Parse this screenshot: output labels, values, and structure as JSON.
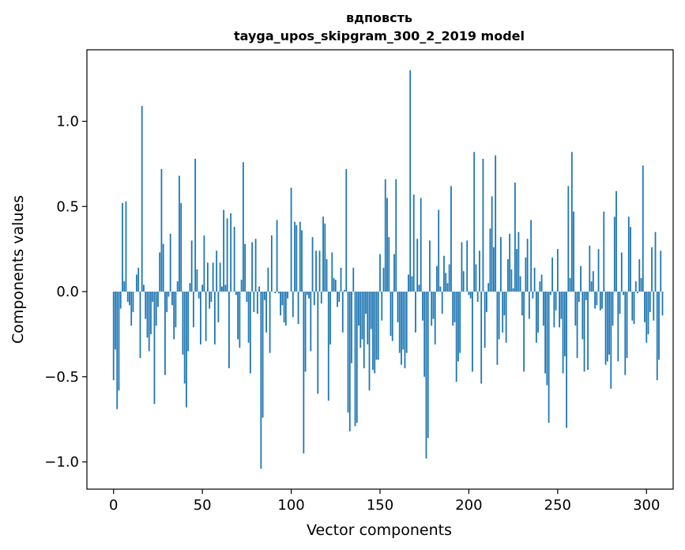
{
  "chart_data": {
    "type": "bar",
    "title": "вдповсть",
    "subtitle": "tayga_upos_skipgram_300_2_2019 model",
    "xlabel": "Vector components",
    "ylabel": "Components values",
    "xlim": [
      -15,
      315
    ],
    "ylim": [
      -1.16,
      1.42
    ],
    "xticks": [
      0,
      50,
      100,
      150,
      200,
      250,
      300
    ],
    "yticks": [
      -1.0,
      -0.5,
      0.0,
      0.5,
      1.0
    ],
    "ytick_labels": [
      "−1.0",
      "−0.5",
      "0.0",
      "0.5",
      "1.0"
    ],
    "bar_width": 0.8,
    "grid": false,
    "legend": "none",
    "color": "#1f77b4",
    "values": [
      -0.52,
      -0.34,
      -0.69,
      -0.58,
      -0.1,
      0.52,
      0.06,
      0.53,
      -0.06,
      -0.08,
      -0.2,
      -0.12,
      0.0,
      0.1,
      0.14,
      -0.39,
      1.09,
      0.04,
      -0.16,
      -0.27,
      -0.35,
      -0.25,
      -0.06,
      -0.66,
      -0.2,
      -0.09,
      0.23,
      0.72,
      0.28,
      -0.49,
      -0.12,
      -0.03,
      0.34,
      -0.08,
      -0.28,
      -0.21,
      0.06,
      0.68,
      0.52,
      -0.37,
      -0.54,
      -0.68,
      -0.35,
      0.05,
      0.3,
      -0.21,
      0.78,
      0.13,
      -0.04,
      -0.31,
      0.04,
      0.33,
      -0.29,
      0.17,
      -0.1,
      -0.06,
      0.17,
      -0.31,
      0.24,
      -0.18,
      0.17,
      0.03,
      0.48,
      0.04,
      0.43,
      -0.45,
      0.46,
      0.0,
      0.38,
      -0.02,
      -0.28,
      -0.33,
      0.07,
      0.76,
      0.28,
      -0.06,
      -0.3,
      -0.48,
      0.29,
      -0.12,
      0.31,
      -0.13,
      0.03,
      -1.04,
      -0.74,
      -0.05,
      -0.24,
      0.14,
      -0.36,
      0.33,
      0.0,
      -0.01,
      0.42,
      -0.01,
      -0.14,
      -0.08,
      -0.18,
      -0.2,
      -0.04,
      0.0,
      0.61,
      -0.15,
      0.41,
      0.39,
      -0.19,
      0.41,
      0.36,
      -0.95,
      -0.47,
      -0.02,
      -0.04,
      -0.35,
      0.32,
      -0.08,
      0.24,
      -0.6,
      0.24,
      -0.07,
      0.44,
      0.4,
      0.19,
      -0.64,
      -0.31,
      0.23,
      0.08,
      0.07,
      -0.09,
      -0.06,
      0.14,
      -0.24,
      0.01,
      0.72,
      -0.71,
      -0.82,
      -0.42,
      0.14,
      -0.79,
      -0.77,
      -0.2,
      -0.33,
      -0.28,
      -0.45,
      -0.13,
      -0.31,
      -0.58,
      -0.22,
      -0.46,
      -0.48,
      -0.4,
      -0.4,
      0.22,
      -0.17,
      0.14,
      0.66,
      0.55,
      0.32,
      -0.26,
      -0.29,
      0.22,
      0.66,
      -0.18,
      -0.36,
      -0.43,
      -0.34,
      -0.45,
      -0.36,
      0.1,
      1.3,
      0.09,
      0.57,
      -0.24,
      0.31,
      0.04,
      0.55,
      -0.17,
      -0.5,
      -0.98,
      -0.86,
      0.3,
      -0.2,
      -0.16,
      -0.31,
      0.15,
      0.48,
      0.03,
      -0.13,
      0.21,
      0.11,
      0.05,
      0.16,
      0.62,
      -0.2,
      -0.18,
      -0.53,
      -0.41,
      -0.36,
      0.29,
      0.12,
      0.0,
      0.3,
      -0.02,
      -0.04,
      -0.47,
      0.82,
      0.16,
      -0.06,
      0.24,
      -0.54,
      0.78,
      -0.33,
      -0.12,
      0.05,
      0.37,
      0.56,
      0.26,
      0.8,
      -0.43,
      -0.28,
      0.32,
      -0.24,
      -0.14,
      -0.3,
      0.19,
      0.34,
      0.13,
      0.02,
      0.64,
      0.25,
      0.35,
      0.09,
      -0.14,
      -0.47,
      0.2,
      0.31,
      -0.16,
      0.42,
      -0.04,
      0.14,
      -0.3,
      -0.24,
      0.06,
      0.1,
      -0.2,
      -0.48,
      -0.55,
      -0.77,
      -0.02,
      0.2,
      -0.21,
      -0.11,
      0.25,
      -0.21,
      -0.16,
      -0.48,
      -0.38,
      -0.8,
      0.62,
      0.08,
      0.82,
      0.47,
      -0.2,
      -0.39,
      -0.06,
      0.15,
      -0.28,
      -0.47,
      -0.05,
      -0.46,
      0.27,
      0.06,
      0.12,
      -0.1,
      -0.08,
      0.25,
      -0.11,
      -0.1,
      0.47,
      -0.43,
      -0.41,
      -0.37,
      -0.57,
      -0.2,
      0.44,
      0.59,
      -0.41,
      -0.13,
      0.23,
      -0.02,
      -0.49,
      -0.39,
      0.44,
      0.38,
      -0.17,
      -0.19,
      0.06,
      -0.01,
      0.19,
      0.08,
      0.74,
      -0.18,
      -0.3,
      -0.25,
      -0.12,
      0.26,
      -0.17,
      0.35,
      -0.52,
      -0.4,
      0.24,
      -0.14
    ]
  }
}
